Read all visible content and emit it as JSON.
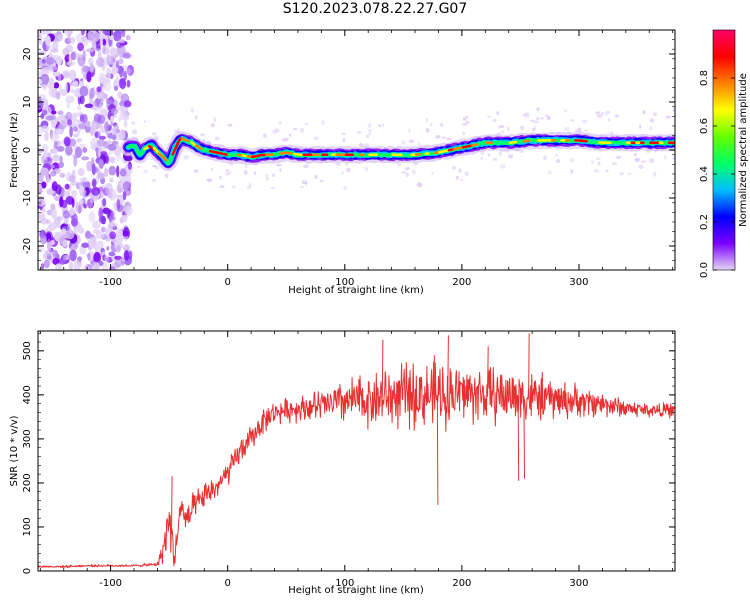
{
  "title": "S120.2023.078.22.27.G07",
  "chart_data": [
    {
      "type": "heatmap",
      "xlabel": "Height of straight line (km)",
      "ylabel": "Frequency (Hz)",
      "xlim": [
        -162,
        382
      ],
      "ylim": [
        -25,
        25
      ],
      "xticks": [
        -100,
        0,
        100,
        200,
        300
      ],
      "yticks": [
        -20,
        -10,
        0,
        10,
        20
      ],
      "colorbar": {
        "label": "Normalized spectral amplitude",
        "range": [
          0,
          1
        ],
        "ticks": [
          0.0,
          0.2,
          0.4,
          0.6,
          0.8
        ],
        "tick_labels": [
          "0.0",
          "0.2",
          "0.4",
          "0.6",
          "0.8"
        ],
        "colors": [
          "#e6d6f5",
          "#7a00ff",
          "#0000ff",
          "#00bfff",
          "#00ff66",
          "#66ff00",
          "#ffff00",
          "#ff8000",
          "#ff0000",
          "#ff0066"
        ]
      },
      "noise_region_x": [
        -162,
        -83
      ],
      "ridge": {
        "x": [
          -85,
          -80,
          -75,
          -70,
          -65,
          -60,
          -55,
          -50,
          -45,
          -40,
          -35,
          -30,
          -25,
          -20,
          -10,
          0,
          10,
          20,
          30,
          40,
          50,
          60,
          70,
          80,
          90,
          100,
          120,
          140,
          160,
          180,
          190,
          200,
          210,
          220,
          240,
          260,
          280,
          300,
          320,
          340,
          360,
          382
        ],
        "y": [
          0.5,
          1.0,
          -1.0,
          0.5,
          1.0,
          -0.5,
          -1.5,
          -3.0,
          0.5,
          2.5,
          2.0,
          1.5,
          0.5,
          0.0,
          -0.5,
          -1.0,
          -1.0,
          -1.5,
          -1.0,
          -1.0,
          -0.5,
          -1.0,
          -1.0,
          -1.0,
          -1.0,
          -1.0,
          -1.0,
          -1.0,
          -1.0,
          -0.5,
          0.0,
          0.5,
          1.0,
          1.5,
          1.5,
          2.0,
          2.0,
          2.0,
          1.5,
          1.5,
          1.5,
          1.5
        ]
      }
    },
    {
      "type": "line",
      "xlabel": "Height of straight line (km)",
      "ylabel": "SNR (10 * v/v)",
      "xlim": [
        -162,
        382
      ],
      "ylim": [
        0,
        545
      ],
      "xticks": [
        -100,
        0,
        100,
        200,
        300
      ],
      "yticks": [
        0,
        100,
        200,
        300,
        400,
        500
      ],
      "color": "#e83030",
      "series": [
        {
          "x": [
            -162,
            -140,
            -120,
            -100,
            -80,
            -60,
            -55,
            -50,
            -45,
            -40,
            -35,
            -30,
            -20,
            -10,
            0,
            10,
            20,
            30,
            40,
            60,
            80,
            100,
            120,
            140,
            160,
            180,
            200,
            220,
            240,
            260,
            280,
            300,
            320,
            340,
            360,
            382
          ],
          "y": [
            10,
            10,
            12,
            12,
            12,
            15,
            50,
            120,
            30,
            150,
            110,
            140,
            170,
            190,
            220,
            270,
            300,
            340,
            360,
            370,
            375,
            385,
            390,
            395,
            400,
            400,
            405,
            400,
            400,
            395,
            390,
            385,
            380,
            370,
            365,
            365
          ],
          "spread": [
            3,
            3,
            3,
            3,
            3,
            5,
            40,
            60,
            50,
            40,
            40,
            40,
            35,
            35,
            35,
            35,
            35,
            35,
            30,
            35,
            45,
            60,
            75,
            85,
            90,
            90,
            85,
            80,
            75,
            70,
            55,
            45,
            35,
            25,
            20,
            20
          ]
        }
      ],
      "extremes": [
        {
          "x": 179,
          "y": 150
        },
        {
          "x": 248,
          "y": 205
        },
        {
          "x": 253,
          "y": 210
        },
        {
          "x": 176,
          "y": 490
        },
        {
          "x": 188,
          "y": 535
        },
        {
          "x": 257,
          "y": 540
        },
        {
          "x": 132,
          "y": 525
        },
        {
          "x": 222,
          "y": 510
        },
        {
          "x": -48,
          "y": 215
        }
      ]
    }
  ]
}
